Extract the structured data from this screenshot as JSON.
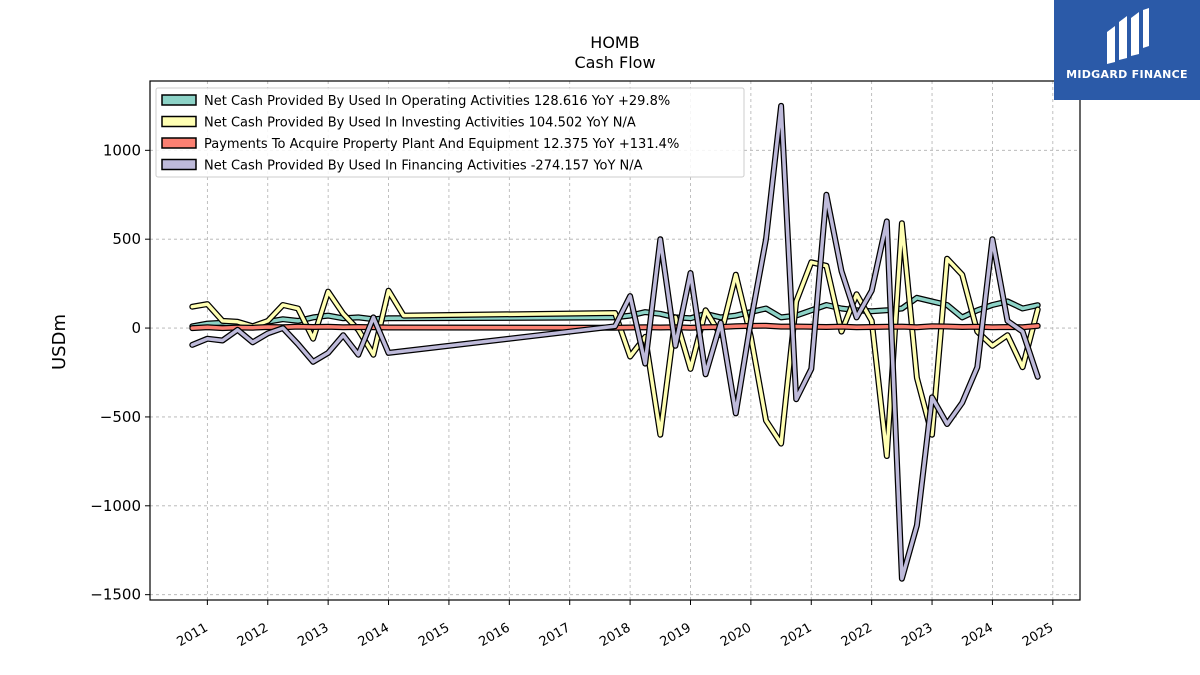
{
  "title": "HOMB",
  "subtitle": "Cash Flow",
  "brand": {
    "name": "MIDGARD FINANCE",
    "color": "#2b5aa8"
  },
  "chart_data": {
    "type": "line",
    "ylabel": "USDm",
    "xlabel": "",
    "ylim": [
      -1530,
      1390
    ],
    "xlim": [
      2010.05,
      2025.45
    ],
    "x_ticks": [
      "2011",
      "2012",
      "2013",
      "2014",
      "2015",
      "2016",
      "2017",
      "2018",
      "2019",
      "2020",
      "2021",
      "2022",
      "2023",
      "2024",
      "2025"
    ],
    "y_ticks": [
      "1000",
      "500",
      "0",
      "−500",
      "−1000",
      "−1500"
    ],
    "y_tick_values": [
      1000,
      500,
      0,
      -500,
      -1000,
      -1500
    ],
    "grid": true,
    "legend_position": "top-left",
    "series": [
      {
        "name": "Net Cash Provided By Used In Operating Activities",
        "legend_label": "Net Cash Provided By Used In Operating Activities  128.616 YoY +29.8%",
        "color": "#8dd3c7",
        "points": [
          [
            2010.75,
            10
          ],
          [
            2011.0,
            25
          ],
          [
            2011.25,
            30
          ],
          [
            2011.5,
            20
          ],
          [
            2011.75,
            10
          ],
          [
            2012.0,
            35
          ],
          [
            2012.25,
            50
          ],
          [
            2012.5,
            40
          ],
          [
            2012.75,
            60
          ],
          [
            2013.0,
            70
          ],
          [
            2013.25,
            55
          ],
          [
            2013.5,
            60
          ],
          [
            2013.75,
            50
          ],
          [
            2014.0,
            55
          ],
          [
            2017.75,
            60
          ],
          [
            2018.0,
            70
          ],
          [
            2018.25,
            90
          ],
          [
            2018.5,
            80
          ],
          [
            2018.75,
            60
          ],
          [
            2019.0,
            55
          ],
          [
            2019.25,
            80
          ],
          [
            2019.5,
            60
          ],
          [
            2019.75,
            70
          ],
          [
            2020.0,
            90
          ],
          [
            2020.25,
            110
          ],
          [
            2020.5,
            60
          ],
          [
            2020.75,
            70
          ],
          [
            2021.0,
            100
          ],
          [
            2021.25,
            130
          ],
          [
            2021.5,
            110
          ],
          [
            2021.75,
            100
          ],
          [
            2022.0,
            95
          ],
          [
            2022.25,
            100
          ],
          [
            2022.5,
            110
          ],
          [
            2022.75,
            170
          ],
          [
            2023.0,
            150
          ],
          [
            2023.25,
            130
          ],
          [
            2023.5,
            60
          ],
          [
            2023.75,
            100
          ],
          [
            2024.0,
            130
          ],
          [
            2024.25,
            150
          ],
          [
            2024.5,
            110
          ],
          [
            2024.75,
            128.616
          ]
        ]
      },
      {
        "name": "Net Cash Provided By Used In Investing Activities",
        "legend_label": "Net Cash Provided By Used In Investing Activities  104.502 YoY N/A",
        "color": "#ffffb3",
        "points": [
          [
            2010.75,
            120
          ],
          [
            2011.0,
            135
          ],
          [
            2011.25,
            40
          ],
          [
            2011.5,
            35
          ],
          [
            2011.75,
            10
          ],
          [
            2012.0,
            40
          ],
          [
            2012.25,
            130
          ],
          [
            2012.5,
            110
          ],
          [
            2012.75,
            -60
          ],
          [
            2013.0,
            205
          ],
          [
            2013.25,
            80
          ],
          [
            2013.5,
            -10
          ],
          [
            2013.75,
            -150
          ],
          [
            2014.0,
            210
          ],
          [
            2014.25,
            70
          ],
          [
            2017.75,
            85
          ],
          [
            2018.0,
            -160
          ],
          [
            2018.25,
            -50
          ],
          [
            2018.5,
            -600
          ],
          [
            2018.75,
            60
          ],
          [
            2019.0,
            -230
          ],
          [
            2019.25,
            100
          ],
          [
            2019.5,
            -40
          ],
          [
            2019.75,
            300
          ],
          [
            2020.0,
            -50
          ],
          [
            2020.25,
            -520
          ],
          [
            2020.5,
            -650
          ],
          [
            2020.75,
            150
          ],
          [
            2021.0,
            370
          ],
          [
            2021.25,
            350
          ],
          [
            2021.5,
            -20
          ],
          [
            2021.75,
            190
          ],
          [
            2022.0,
            40
          ],
          [
            2022.25,
            -720
          ],
          [
            2022.5,
            590
          ],
          [
            2022.75,
            -280
          ],
          [
            2023.0,
            -600
          ],
          [
            2023.25,
            390
          ],
          [
            2023.5,
            300
          ],
          [
            2023.75,
            -20
          ],
          [
            2024.0,
            -100
          ],
          [
            2024.25,
            -40
          ],
          [
            2024.5,
            -220
          ],
          [
            2024.75,
            104.502
          ]
        ]
      },
      {
        "name": "Payments To Acquire Property Plant And Equipment",
        "legend_label": "Payments To Acquire Property Plant And Equipment  12.375 YoY +131.4%",
        "color": "#fb8072",
        "points": [
          [
            2010.75,
            0
          ],
          [
            2011.0,
            5
          ],
          [
            2011.25,
            0
          ],
          [
            2011.5,
            3
          ],
          [
            2011.75,
            2
          ],
          [
            2012.0,
            6
          ],
          [
            2012.25,
            4
          ],
          [
            2012.5,
            8
          ],
          [
            2012.75,
            6
          ],
          [
            2013.0,
            7
          ],
          [
            2013.25,
            5
          ],
          [
            2013.5,
            6
          ],
          [
            2013.75,
            4
          ],
          [
            2014.0,
            3
          ],
          [
            2017.75,
            2
          ],
          [
            2018.0,
            3
          ],
          [
            2018.25,
            5
          ],
          [
            2018.5,
            3
          ],
          [
            2018.75,
            4
          ],
          [
            2019.0,
            2
          ],
          [
            2019.25,
            5
          ],
          [
            2019.5,
            6
          ],
          [
            2019.75,
            10
          ],
          [
            2020.0,
            12
          ],
          [
            2020.25,
            13
          ],
          [
            2020.5,
            8
          ],
          [
            2020.75,
            9
          ],
          [
            2021.0,
            7
          ],
          [
            2021.25,
            6
          ],
          [
            2021.5,
            8
          ],
          [
            2021.75,
            5
          ],
          [
            2022.0,
            6
          ],
          [
            2022.25,
            7
          ],
          [
            2022.5,
            8
          ],
          [
            2022.75,
            4
          ],
          [
            2023.0,
            10
          ],
          [
            2023.25,
            9
          ],
          [
            2023.5,
            6
          ],
          [
            2023.75,
            7
          ],
          [
            2024.0,
            5
          ],
          [
            2024.25,
            6
          ],
          [
            2024.5,
            5
          ],
          [
            2024.75,
            12.375
          ]
        ]
      },
      {
        "name": "Net Cash Provided By Used In Financing Activities",
        "legend_label": "Net Cash Provided By Used In Financing Activities  -274.157 YoY N/A",
        "color": "#bebada",
        "points": [
          [
            2010.75,
            -95
          ],
          [
            2011.0,
            -60
          ],
          [
            2011.25,
            -70
          ],
          [
            2011.5,
            -10
          ],
          [
            2011.75,
            -80
          ],
          [
            2012.0,
            -30
          ],
          [
            2012.25,
            0
          ],
          [
            2012.5,
            -90
          ],
          [
            2012.75,
            -190
          ],
          [
            2013.0,
            -140
          ],
          [
            2013.25,
            -40
          ],
          [
            2013.5,
            -150
          ],
          [
            2013.75,
            60
          ],
          [
            2014.0,
            -140
          ],
          [
            2017.75,
            10
          ],
          [
            2018.0,
            180
          ],
          [
            2018.25,
            -200
          ],
          [
            2018.5,
            500
          ],
          [
            2018.75,
            -100
          ],
          [
            2019.0,
            310
          ],
          [
            2019.25,
            -260
          ],
          [
            2019.5,
            30
          ],
          [
            2019.75,
            -480
          ],
          [
            2020.0,
            40
          ],
          [
            2020.25,
            500
          ],
          [
            2020.5,
            1250
          ],
          [
            2020.75,
            -400
          ],
          [
            2021.0,
            -230
          ],
          [
            2021.25,
            750
          ],
          [
            2021.5,
            320
          ],
          [
            2021.75,
            60
          ],
          [
            2022.0,
            210
          ],
          [
            2022.25,
            600
          ],
          [
            2022.5,
            -1410
          ],
          [
            2022.75,
            -1110
          ],
          [
            2023.0,
            -390
          ],
          [
            2023.25,
            -540
          ],
          [
            2023.5,
            -420
          ],
          [
            2023.75,
            -220
          ],
          [
            2024.0,
            500
          ],
          [
            2024.25,
            40
          ],
          [
            2024.5,
            -20
          ],
          [
            2024.75,
            -274.157
          ]
        ]
      }
    ]
  }
}
